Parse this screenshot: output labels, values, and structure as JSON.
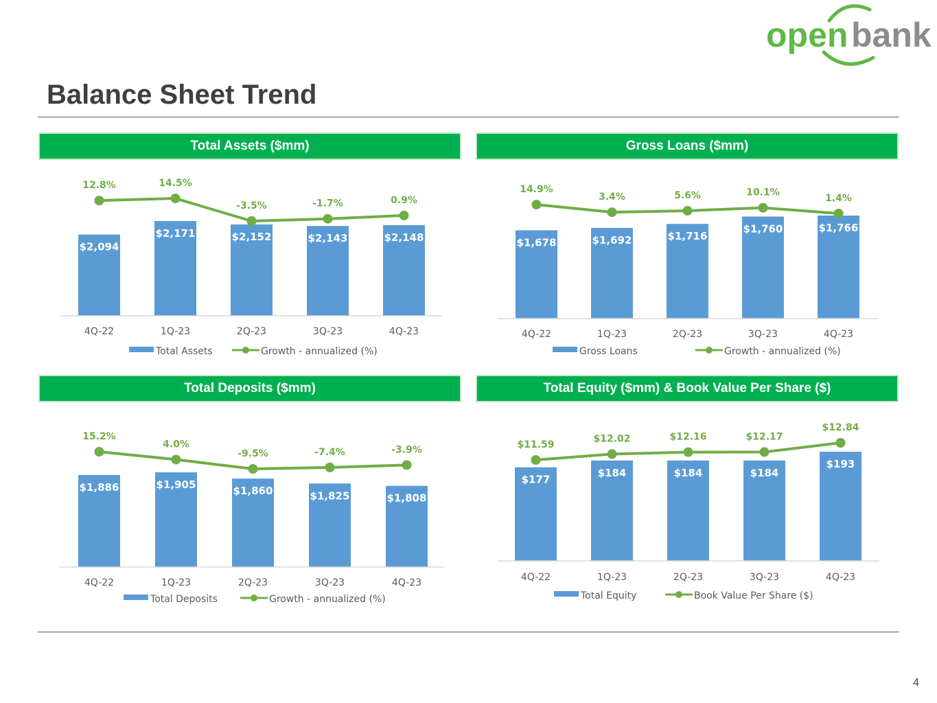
{
  "logo": {
    "text_open": "open",
    "text_bank": "bank"
  },
  "page": {
    "title": "Balance Sheet Trend",
    "page_number": "4"
  },
  "colors": {
    "bar": "#5b9bd5",
    "line": "#70ad47",
    "header": "#00b050",
    "title": "#3f3f3f"
  },
  "chart_data": [
    {
      "type": "bar",
      "title": "Total Assets ($mm)",
      "categories": [
        "4Q-22",
        "1Q-23",
        "2Q-23",
        "3Q-23",
        "4Q-23"
      ],
      "series": [
        {
          "name": "Total Assets",
          "kind": "bar",
          "values": [
            2094,
            2171,
            2152,
            2143,
            2148
          ],
          "labels": [
            "$2,094",
            "$2,171",
            "$2,152",
            "$2,143",
            "$2,148"
          ]
        },
        {
          "name": "Growth - annualized (%)",
          "kind": "line",
          "values": [
            12.8,
            14.5,
            -3.5,
            -1.7,
            0.9
          ],
          "labels": [
            "12.8%",
            "14.5%",
            "-3.5%",
            "-1.7%",
            "0.9%"
          ]
        }
      ],
      "legend": [
        "Total Assets",
        "Growth - annualized (%)"
      ],
      "legend_position": "bottom"
    },
    {
      "type": "bar",
      "title": "Gross Loans ($mm)",
      "categories": [
        "4Q-22",
        "1Q-23",
        "2Q-23",
        "3Q-23",
        "4Q-23"
      ],
      "series": [
        {
          "name": "Gross Loans",
          "kind": "bar",
          "values": [
            1678,
            1692,
            1716,
            1760,
            1766
          ],
          "labels": [
            "$1,678",
            "$1,692",
            "$1,716",
            "$1,760",
            "$1,766"
          ]
        },
        {
          "name": "Growth - annualized (%)",
          "kind": "line",
          "values": [
            14.9,
            3.4,
            5.6,
            10.1,
            1.4
          ],
          "labels": [
            "14.9%",
            "3.4%",
            "5.6%",
            "10.1%",
            "1.4%"
          ]
        }
      ],
      "legend": [
        "Gross Loans",
        "Growth - annualized (%)"
      ],
      "legend_position": "bottom"
    },
    {
      "type": "bar",
      "title": "Total Deposits ($mm)",
      "categories": [
        "4Q-22",
        "1Q-23",
        "2Q-23",
        "3Q-23",
        "4Q-23"
      ],
      "series": [
        {
          "name": "Total Deposits",
          "kind": "bar",
          "values": [
            1886,
            1905,
            1860,
            1825,
            1808
          ],
          "labels": [
            "$1,886",
            "$1,905",
            "$1,860",
            "$1,825",
            "$1,808"
          ]
        },
        {
          "name": "Growth - annualized (%)",
          "kind": "line",
          "values": [
            15.2,
            4.0,
            -9.5,
            -7.4,
            -3.9
          ],
          "labels": [
            "15.2%",
            "4.0%",
            "-9.5%",
            "-7.4%",
            "-3.9%"
          ]
        }
      ],
      "legend": [
        "Total Deposits",
        "Growth - annualized (%)"
      ],
      "legend_position": "bottom"
    },
    {
      "type": "bar",
      "title": "Total Equity ($mm) & Book Value Per Share ($)",
      "categories": [
        "4Q-22",
        "1Q-23",
        "2Q-23",
        "3Q-23",
        "4Q-23"
      ],
      "series": [
        {
          "name": "Total Equity",
          "kind": "bar",
          "values": [
            177,
            184,
            184,
            184,
            193
          ],
          "labels": [
            "$177",
            "$184",
            "$184",
            "$184",
            "$193"
          ]
        },
        {
          "name": "Book Value Per Share ($)",
          "kind": "line",
          "values": [
            11.59,
            12.02,
            12.16,
            12.17,
            12.84
          ],
          "labels": [
            "$11.59",
            "$12.02",
            "$12.16",
            "$12.17",
            "$12.84"
          ]
        }
      ],
      "legend": [
        "Total Equity",
        "Book Value Per Share ($)"
      ],
      "legend_position": "bottom"
    }
  ]
}
